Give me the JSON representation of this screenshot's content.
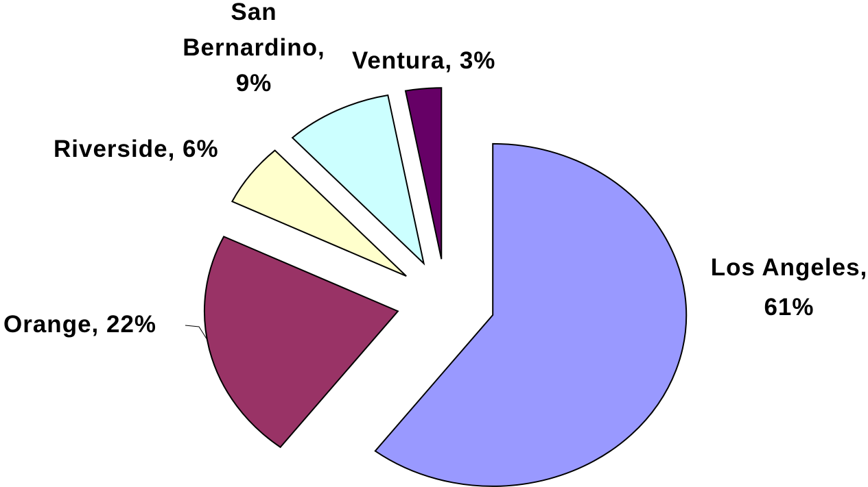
{
  "chart_data": {
    "type": "pie",
    "labels": [
      "Los Angeles, 61%",
      "Orange, 22%",
      "Riverside, 6%",
      "San Bernardino, 9%",
      "Ventura, 3%"
    ],
    "values": [
      61,
      22,
      6,
      9,
      3
    ],
    "colors": [
      "#9999ff",
      "#993366",
      "#ffffcc",
      "#ccffff",
      "#660066"
    ],
    "exploded": true
  }
}
